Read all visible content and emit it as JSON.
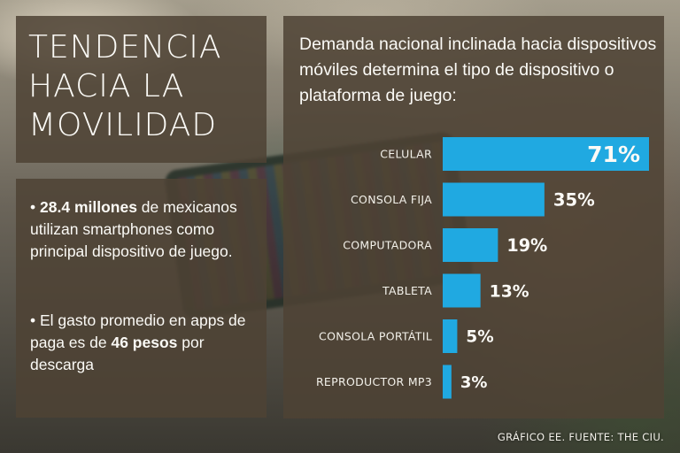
{
  "headline": "TENDENCIA\nHACIA LA\nMOVILIDAD",
  "facts": [
    {
      "bullet": "•",
      "strong": "28.4 millones",
      "rest": " de mexicanos utilizan smartphones como principal dispositivo de juego."
    },
    {
      "bullet": "•",
      "pre": " El gasto promedio en apps de paga es de ",
      "strong": "46 pesos",
      "post": " por descarga"
    }
  ],
  "footer": "GRÁFICO EE. FUENTE: THE CIU.",
  "colors": {
    "bar": "#20a9e1",
    "panel": "#4e4234",
    "text": "#fbfaf6"
  },
  "chart_data": {
    "type": "bar",
    "orientation": "horizontal",
    "title": "Demanda nacional inclinada hacia dispositivos móviles determina el tipo de dispositivo o plataforma de juego:",
    "categories": [
      "CELULAR",
      "CONSOLA FIJA",
      "COMPUTADORA",
      "TABLETA",
      "CONSOLA PORTÁTIL",
      "REPRODUCTOR MP3"
    ],
    "values": [
      71,
      35,
      19,
      13,
      5,
      3
    ],
    "value_labels": [
      "71%",
      "35%",
      "19%",
      "13%",
      "5%",
      "3%"
    ],
    "unit": "%",
    "xlim": [
      0,
      71
    ],
    "grid": false,
    "legend": "none"
  }
}
